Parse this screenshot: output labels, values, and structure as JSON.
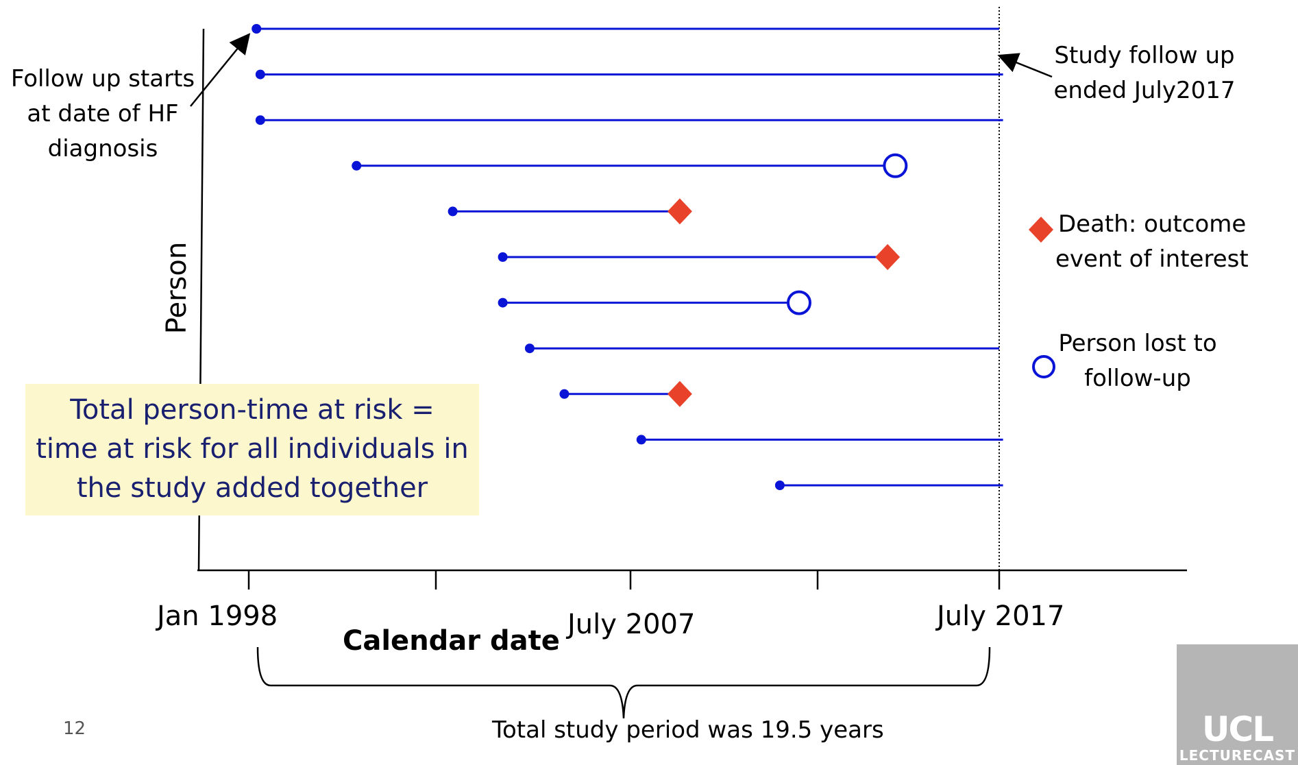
{
  "y_axis_label": "Person",
  "x_axis_label": "Calendar date",
  "x_ticks": [
    {
      "label": "Jan 1998",
      "year": 1998.0
    },
    {
      "label": "July 2007",
      "year": 2007.5
    },
    {
      "label": "July 2017",
      "year": 2017.5
    }
  ],
  "annotations": {
    "follow_up_start": [
      "Follow up starts",
      "at date of HF",
      "diagnosis"
    ],
    "study_end": [
      "Study follow up",
      "ended July2017"
    ],
    "death_legend": [
      "Death: outcome",
      "event of interest"
    ],
    "lost_legend": [
      "Person lost to",
      "follow-up"
    ]
  },
  "note_box": [
    "Total person-time at risk =",
    "time at risk for all individuals in",
    "the study added together"
  ],
  "study_period": "Total study period was 19.5 years",
  "page_number": "12",
  "logo": {
    "text": "UCL",
    "subtext": "LECTURECAST"
  },
  "colors": {
    "line": "#0a14d6",
    "death": "#e8432a",
    "note_bg": "#fcf7cd",
    "note_text": "#1a2070"
  },
  "persons": [
    {
      "start_year": 1998.2,
      "end_year": 2017.5,
      "outcome": "end-of-study"
    },
    {
      "start_year": 1998.3,
      "end_year": 2017.6,
      "outcome": "end-of-study"
    },
    {
      "start_year": 1998.3,
      "end_year": 2017.6,
      "outcome": "end-of-study"
    },
    {
      "start_year": 2000.8,
      "end_year": 2014.8,
      "outcome": "lost-to-follow-up"
    },
    {
      "start_year": 2003.3,
      "end_year": 2009.2,
      "outcome": "death"
    },
    {
      "start_year": 2004.6,
      "end_year": 2014.6,
      "outcome": "death"
    },
    {
      "start_year": 2004.6,
      "end_year": 2012.3,
      "outcome": "lost-to-follow-up"
    },
    {
      "start_year": 2005.3,
      "end_year": 2017.5,
      "outcome": "end-of-study"
    },
    {
      "start_year": 2006.2,
      "end_year": 2009.2,
      "outcome": "death"
    },
    {
      "start_year": 2008.2,
      "end_year": 2017.6,
      "outcome": "end-of-study"
    },
    {
      "start_year": 2011.8,
      "end_year": 2017.6,
      "outcome": "end-of-study"
    }
  ]
}
